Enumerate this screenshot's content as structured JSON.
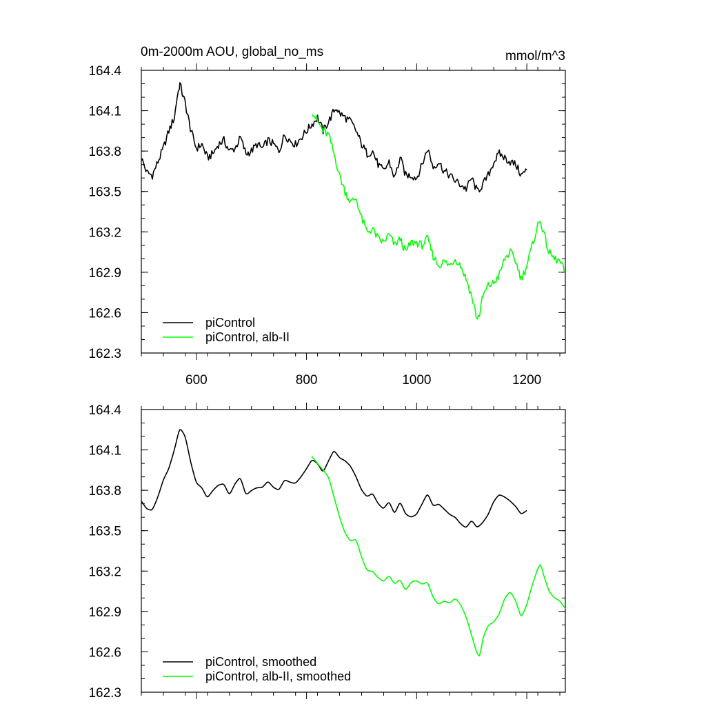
{
  "chart_data": [
    {
      "type": "line",
      "title": "0m-2000m AOU, global_no_ms",
      "units": "mmol/m^3",
      "xlim": [
        500,
        1270
      ],
      "ylim": [
        162.3,
        164.4
      ],
      "x_ticks": [
        600,
        800,
        1000,
        1200
      ],
      "x_tick_labels": [
        "600",
        "800",
        "1000",
        "1200"
      ],
      "y_ticks": [
        162.3,
        162.6,
        162.9,
        163.2,
        163.5,
        163.8,
        164.1,
        164.4
      ],
      "y_tick_labels": [
        "162.3",
        "162.6",
        "162.9",
        "163.2",
        "163.5",
        "163.8",
        "164.1",
        "164.4"
      ],
      "legend_position": "bottom-left",
      "grid": false,
      "series": [
        {
          "name": "piControl",
          "color": "#000000",
          "x": [
            500,
            510,
            520,
            530,
            540,
            550,
            560,
            565,
            570,
            575,
            580,
            585,
            590,
            600,
            610,
            620,
            630,
            640,
            650,
            660,
            670,
            680,
            690,
            700,
            710,
            720,
            730,
            740,
            750,
            760,
            770,
            780,
            790,
            800,
            810,
            820,
            830,
            840,
            850,
            855,
            860,
            870,
            880,
            890,
            900,
            910,
            920,
            930,
            940,
            950,
            960,
            970,
            980,
            990,
            1000,
            1010,
            1020,
            1030,
            1040,
            1050,
            1060,
            1070,
            1080,
            1090,
            1100,
            1110,
            1120,
            1130,
            1140,
            1150,
            1160,
            1170,
            1180,
            1190,
            1200
          ],
          "values": [
            163.75,
            163.64,
            163.62,
            163.72,
            163.82,
            163.95,
            164.05,
            164.2,
            164.3,
            164.22,
            164.15,
            164.05,
            163.95,
            163.82,
            163.85,
            163.75,
            163.78,
            163.85,
            163.88,
            163.8,
            163.82,
            163.9,
            163.78,
            163.8,
            163.85,
            163.82,
            163.88,
            163.85,
            163.8,
            163.92,
            163.88,
            163.85,
            163.9,
            163.95,
            164.0,
            164.05,
            163.95,
            164.02,
            164.1,
            164.12,
            164.08,
            164.05,
            164.02,
            163.95,
            163.85,
            163.78,
            163.8,
            163.7,
            163.65,
            163.72,
            163.6,
            163.75,
            163.62,
            163.62,
            163.6,
            163.7,
            163.82,
            163.68,
            163.72,
            163.65,
            163.62,
            163.58,
            163.55,
            163.52,
            163.6,
            163.5,
            163.55,
            163.62,
            163.72,
            163.78,
            163.75,
            163.72,
            163.7,
            163.62,
            163.66
          ]
        },
        {
          "name": "piControl, alb-II",
          "color": "#00ff00",
          "x": [
            810,
            820,
            830,
            840,
            850,
            860,
            870,
            880,
            890,
            900,
            910,
            920,
            930,
            940,
            950,
            960,
            970,
            980,
            990,
            1000,
            1010,
            1020,
            1030,
            1040,
            1050,
            1060,
            1070,
            1080,
            1090,
            1100,
            1110,
            1115,
            1120,
            1130,
            1140,
            1150,
            1160,
            1170,
            1180,
            1190,
            1200,
            1210,
            1220,
            1225,
            1230,
            1240,
            1250,
            1260,
            1270
          ],
          "values": [
            164.1,
            164.02,
            163.95,
            163.92,
            163.78,
            163.62,
            163.5,
            163.42,
            163.45,
            163.3,
            163.2,
            163.22,
            163.15,
            163.12,
            163.18,
            163.1,
            163.15,
            163.05,
            163.12,
            163.12,
            163.1,
            163.15,
            163.02,
            162.95,
            162.98,
            162.95,
            163.0,
            162.95,
            162.85,
            162.72,
            162.55,
            162.6,
            162.72,
            162.8,
            162.82,
            162.88,
            163.0,
            163.05,
            162.98,
            162.85,
            162.95,
            163.1,
            163.25,
            163.28,
            163.2,
            163.05,
            163.0,
            162.98,
            162.9
          ]
        }
      ]
    },
    {
      "type": "line",
      "xlim": [
        500,
        1270
      ],
      "ylim": [
        162.3,
        164.4
      ],
      "x_ticks": [
        600,
        800,
        1000,
        1200
      ],
      "y_ticks": [
        162.3,
        162.6,
        162.9,
        163.2,
        163.5,
        163.8,
        164.1,
        164.4
      ],
      "y_tick_labels": [
        "162.3",
        "162.6",
        "162.9",
        "163.2",
        "163.5",
        "163.8",
        "164.1",
        "164.4"
      ],
      "legend_position": "bottom-left",
      "grid": false,
      "series": [
        {
          "name": "piControl, smoothed",
          "color": "#000000",
          "x": [
            500,
            510,
            520,
            530,
            540,
            550,
            560,
            570,
            580,
            590,
            600,
            610,
            620,
            630,
            640,
            650,
            660,
            670,
            680,
            690,
            700,
            710,
            720,
            730,
            740,
            750,
            760,
            770,
            780,
            790,
            800,
            810,
            820,
            830,
            840,
            850,
            860,
            870,
            880,
            890,
            900,
            910,
            920,
            930,
            940,
            950,
            960,
            970,
            980,
            990,
            1000,
            1010,
            1020,
            1030,
            1040,
            1050,
            1060,
            1070,
            1080,
            1090,
            1100,
            1110,
            1120,
            1130,
            1140,
            1150,
            1160,
            1170,
            1180,
            1190,
            1200
          ],
          "values": [
            163.72,
            163.66,
            163.65,
            163.75,
            163.88,
            163.96,
            164.1,
            164.27,
            164.2,
            164.0,
            163.85,
            163.82,
            163.74,
            163.8,
            163.84,
            163.85,
            163.76,
            163.85,
            163.9,
            163.76,
            163.8,
            163.82,
            163.82,
            163.87,
            163.82,
            163.8,
            163.88,
            163.86,
            163.85,
            163.9,
            163.96,
            164.03,
            164.0,
            163.93,
            164.02,
            164.1,
            164.04,
            164.02,
            163.98,
            163.9,
            163.8,
            163.75,
            163.78,
            163.7,
            163.66,
            163.72,
            163.62,
            163.72,
            163.62,
            163.6,
            163.62,
            163.7,
            163.78,
            163.68,
            163.7,
            163.66,
            163.62,
            163.6,
            163.55,
            163.52,
            163.58,
            163.52,
            163.56,
            163.62,
            163.72,
            163.77,
            163.75,
            163.72,
            163.68,
            163.62,
            163.65
          ]
        },
        {
          "name": "piControl, alb-II, smoothed",
          "color": "#00ff00",
          "x": [
            810,
            820,
            830,
            840,
            850,
            860,
            870,
            880,
            890,
            900,
            910,
            920,
            930,
            940,
            950,
            960,
            970,
            980,
            990,
            1000,
            1010,
            1020,
            1030,
            1040,
            1050,
            1060,
            1070,
            1080,
            1090,
            1100,
            1110,
            1115,
            1120,
            1130,
            1140,
            1150,
            1160,
            1170,
            1180,
            1190,
            1200,
            1210,
            1220,
            1225,
            1230,
            1240,
            1250,
            1260,
            1270
          ],
          "values": [
            164.05,
            164.0,
            163.95,
            163.9,
            163.75,
            163.6,
            163.48,
            163.42,
            163.44,
            163.3,
            163.2,
            163.2,
            163.15,
            163.12,
            163.17,
            163.1,
            163.14,
            163.05,
            163.12,
            163.13,
            163.1,
            163.12,
            163.0,
            162.95,
            162.98,
            162.96,
            163.0,
            162.95,
            162.86,
            162.72,
            162.58,
            162.56,
            162.7,
            162.8,
            162.82,
            162.88,
            163.0,
            163.05,
            162.98,
            162.85,
            162.95,
            163.1,
            163.22,
            163.26,
            163.18,
            163.05,
            163.0,
            162.98,
            162.92
          ]
        }
      ]
    }
  ]
}
